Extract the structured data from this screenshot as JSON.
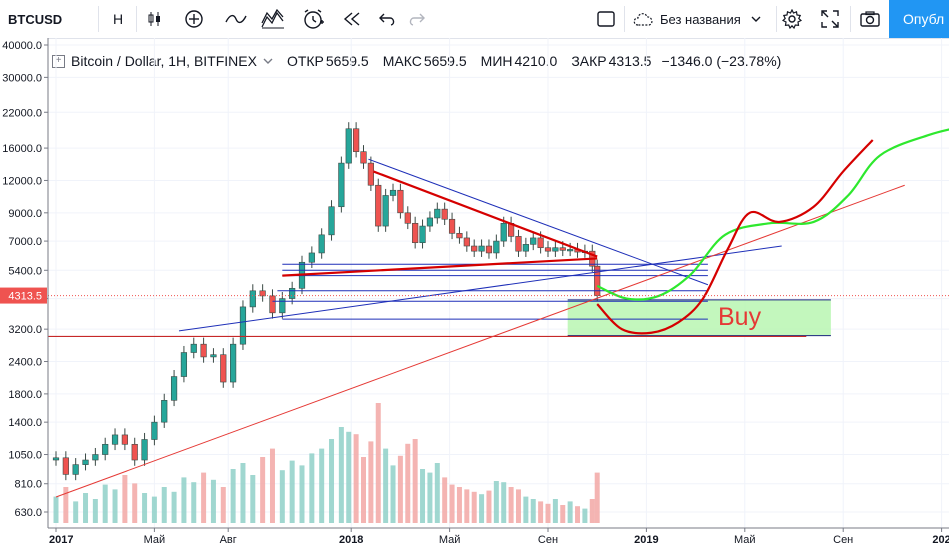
{
  "toolbar": {
    "symbol": "BTCUSD",
    "interval": "H",
    "layout_name": "Без названия",
    "publish_label": "Опубл"
  },
  "legend": {
    "title": "Bitcoin / Dollar, 1H, BITFINEX",
    "open_label": "ОТКР",
    "open": "5659.5",
    "high_label": "МАКС",
    "high": "5659.5",
    "low_label": "МИН",
    "low": "4210.0",
    "close_label": "ЗАКР",
    "close": "4313.5",
    "change": "−1346.0 (−23.78%)"
  },
  "annotation": {
    "buy_label": "Buy"
  },
  "colors": {
    "up": "#26a69a",
    "down": "#ef5350",
    "accent": "#2196f3"
  },
  "chart_data": {
    "type": "candlestick",
    "symbol": "BTCUSD",
    "exchange": "BITFINEX",
    "y_scale": "log",
    "ylim": [
      560,
      42000
    ],
    "y_ticks": [
      "40000.0",
      "30000.0",
      "22000.0",
      "16000.0",
      "12000.0",
      "9000.0",
      "7000.0",
      "5400.0",
      "4200.0",
      "3200.0",
      "2400.0",
      "1800.0",
      "1400.0",
      "1050.0",
      "810.0",
      "630.0"
    ],
    "y_tick_values": [
      40000,
      30000,
      22000,
      16000,
      12000,
      9000,
      7000,
      5400,
      4200,
      3200,
      2400,
      1800,
      1400,
      1050,
      810,
      630
    ],
    "x_ticks": [
      "2017",
      "Май",
      "Авг",
      "2018",
      "Май",
      "Сен",
      "2019",
      "Май",
      "Сен",
      "202"
    ],
    "x_tick_months": [
      0,
      4,
      7,
      12,
      16,
      20,
      24,
      28,
      32,
      36
    ],
    "last_price": "4313.5",
    "last_price_value": 4313.5,
    "candles": [
      {
        "m": 0.0,
        "o": 1000,
        "c": 1020
      },
      {
        "m": 0.4,
        "o": 1020,
        "c": 880
      },
      {
        "m": 0.8,
        "o": 880,
        "c": 960
      },
      {
        "m": 1.2,
        "o": 960,
        "c": 1000
      },
      {
        "m": 1.6,
        "o": 1000,
        "c": 1050
      },
      {
        "m": 2.0,
        "o": 1050,
        "c": 1150
      },
      {
        "m": 2.4,
        "o": 1150,
        "c": 1250
      },
      {
        "m": 2.8,
        "o": 1250,
        "c": 1150
      },
      {
        "m": 3.2,
        "o": 1150,
        "c": 1000
      },
      {
        "m": 3.6,
        "o": 1000,
        "c": 1200
      },
      {
        "m": 4.0,
        "o": 1200,
        "c": 1400
      },
      {
        "m": 4.4,
        "o": 1400,
        "c": 1700
      },
      {
        "m": 4.8,
        "o": 1700,
        "c": 2100
      },
      {
        "m": 5.2,
        "o": 2100,
        "c": 2600
      },
      {
        "m": 5.6,
        "o": 2600,
        "c": 2800
      },
      {
        "m": 6.0,
        "o": 2800,
        "c": 2500
      },
      {
        "m": 6.4,
        "o": 2500,
        "c": 2550
      },
      {
        "m": 6.8,
        "o": 2550,
        "c": 2000
      },
      {
        "m": 7.2,
        "o": 2000,
        "c": 2800
      },
      {
        "m": 7.6,
        "o": 2800,
        "c": 3900
      },
      {
        "m": 8.0,
        "o": 3900,
        "c": 4500
      },
      {
        "m": 8.4,
        "o": 4500,
        "c": 4300
      },
      {
        "m": 8.8,
        "o": 4300,
        "c": 3700
      },
      {
        "m": 9.2,
        "o": 3700,
        "c": 4200
      },
      {
        "m": 9.6,
        "o": 4200,
        "c": 4600
      },
      {
        "m": 10.0,
        "o": 4600,
        "c": 5800
      },
      {
        "m": 10.4,
        "o": 5800,
        "c": 6300
      },
      {
        "m": 10.8,
        "o": 6300,
        "c": 7400
      },
      {
        "m": 11.2,
        "o": 7400,
        "c": 9500
      },
      {
        "m": 11.6,
        "o": 9500,
        "c": 14000
      },
      {
        "m": 11.9,
        "o": 14000,
        "c": 19000
      },
      {
        "m": 12.2,
        "o": 19000,
        "c": 15500
      },
      {
        "m": 12.5,
        "o": 15500,
        "c": 14000
      },
      {
        "m": 12.8,
        "o": 14000,
        "c": 11500
      },
      {
        "m": 13.1,
        "o": 11500,
        "c": 8000
      },
      {
        "m": 13.4,
        "o": 8000,
        "c": 10500
      },
      {
        "m": 13.7,
        "o": 10500,
        "c": 11000
      },
      {
        "m": 14.0,
        "o": 11000,
        "c": 9000
      },
      {
        "m": 14.3,
        "o": 9000,
        "c": 8200
      },
      {
        "m": 14.6,
        "o": 8200,
        "c": 6900
      },
      {
        "m": 14.9,
        "o": 6900,
        "c": 8000
      },
      {
        "m": 15.2,
        "o": 8000,
        "c": 8600
      },
      {
        "m": 15.5,
        "o": 8600,
        "c": 9300
      },
      {
        "m": 15.8,
        "o": 9300,
        "c": 8500
      },
      {
        "m": 16.1,
        "o": 8500,
        "c": 7500
      },
      {
        "m": 16.4,
        "o": 7500,
        "c": 7200
      },
      {
        "m": 16.7,
        "o": 7200,
        "c": 6700
      },
      {
        "m": 17.0,
        "o": 6700,
        "c": 6400
      },
      {
        "m": 17.3,
        "o": 6400,
        "c": 6700
      },
      {
        "m": 17.6,
        "o": 6700,
        "c": 6300
      },
      {
        "m": 17.9,
        "o": 6300,
        "c": 7000
      },
      {
        "m": 18.2,
        "o": 7000,
        "c": 8200
      },
      {
        "m": 18.5,
        "o": 8200,
        "c": 7300
      },
      {
        "m": 18.8,
        "o": 7300,
        "c": 6400
      },
      {
        "m": 19.1,
        "o": 6400,
        "c": 6800
      },
      {
        "m": 19.4,
        "o": 6800,
        "c": 7200
      },
      {
        "m": 19.7,
        "o": 7200,
        "c": 6600
      },
      {
        "m": 20.0,
        "o": 6600,
        "c": 6400
      },
      {
        "m": 20.3,
        "o": 6400,
        "c": 6600
      },
      {
        "m": 20.6,
        "o": 6600,
        "c": 6450
      },
      {
        "m": 20.9,
        "o": 6450,
        "c": 6500
      },
      {
        "m": 21.2,
        "o": 6500,
        "c": 6350
      },
      {
        "m": 21.5,
        "o": 6350,
        "c": 6400
      },
      {
        "m": 21.8,
        "o": 6400,
        "c": 5600
      },
      {
        "m": 22.0,
        "o": 5600,
        "c": 4313.5
      }
    ],
    "volume": [
      {
        "m": 0.0,
        "v": 0.22
      },
      {
        "m": 0.4,
        "v": 0.3
      },
      {
        "m": 0.8,
        "v": 0.18
      },
      {
        "m": 1.2,
        "v": 0.25
      },
      {
        "m": 1.6,
        "v": 0.2
      },
      {
        "m": 2.0,
        "v": 0.32
      },
      {
        "m": 2.4,
        "v": 0.28
      },
      {
        "m": 2.8,
        "v": 0.4
      },
      {
        "m": 3.2,
        "v": 0.33
      },
      {
        "m": 3.6,
        "v": 0.25
      },
      {
        "m": 4.0,
        "v": 0.22
      },
      {
        "m": 4.4,
        "v": 0.3
      },
      {
        "m": 4.8,
        "v": 0.26
      },
      {
        "m": 5.2,
        "v": 0.38
      },
      {
        "m": 5.6,
        "v": 0.34
      },
      {
        "m": 6.0,
        "v": 0.42
      },
      {
        "m": 6.4,
        "v": 0.36
      },
      {
        "m": 6.8,
        "v": 0.3
      },
      {
        "m": 7.2,
        "v": 0.45
      },
      {
        "m": 7.6,
        "v": 0.5
      },
      {
        "m": 8.0,
        "v": 0.4
      },
      {
        "m": 8.4,
        "v": 0.55
      },
      {
        "m": 8.8,
        "v": 0.62
      },
      {
        "m": 9.2,
        "v": 0.44
      },
      {
        "m": 9.6,
        "v": 0.52
      },
      {
        "m": 10.0,
        "v": 0.48
      },
      {
        "m": 10.4,
        "v": 0.58
      },
      {
        "m": 10.8,
        "v": 0.62
      },
      {
        "m": 11.2,
        "v": 0.7
      },
      {
        "m": 11.6,
        "v": 0.8
      },
      {
        "m": 11.9,
        "v": 0.76
      },
      {
        "m": 12.2,
        "v": 0.74
      },
      {
        "m": 12.5,
        "v": 0.55
      },
      {
        "m": 12.8,
        "v": 0.68
      },
      {
        "m": 13.1,
        "v": 1.0
      },
      {
        "m": 13.4,
        "v": 0.62
      },
      {
        "m": 13.7,
        "v": 0.48
      },
      {
        "m": 14.0,
        "v": 0.56
      },
      {
        "m": 14.3,
        "v": 0.66
      },
      {
        "m": 14.6,
        "v": 0.7
      },
      {
        "m": 14.9,
        "v": 0.45
      },
      {
        "m": 15.2,
        "v": 0.42
      },
      {
        "m": 15.5,
        "v": 0.5
      },
      {
        "m": 15.8,
        "v": 0.38
      },
      {
        "m": 16.1,
        "v": 0.32
      },
      {
        "m": 16.4,
        "v": 0.3
      },
      {
        "m": 16.7,
        "v": 0.28
      },
      {
        "m": 17.0,
        "v": 0.26
      },
      {
        "m": 17.3,
        "v": 0.24
      },
      {
        "m": 17.6,
        "v": 0.27
      },
      {
        "m": 17.9,
        "v": 0.35
      },
      {
        "m": 18.2,
        "v": 0.34
      },
      {
        "m": 18.5,
        "v": 0.3
      },
      {
        "m": 18.8,
        "v": 0.28
      },
      {
        "m": 19.1,
        "v": 0.22
      },
      {
        "m": 19.4,
        "v": 0.2
      },
      {
        "m": 19.7,
        "v": 0.18
      },
      {
        "m": 20.0,
        "v": 0.16
      },
      {
        "m": 20.3,
        "v": 0.2
      },
      {
        "m": 20.6,
        "v": 0.15
      },
      {
        "m": 20.9,
        "v": 0.18
      },
      {
        "m": 21.2,
        "v": 0.14
      },
      {
        "m": 21.5,
        "v": 0.12
      },
      {
        "m": 21.8,
        "v": 0.2
      },
      {
        "m": 22.0,
        "v": 0.42
      }
    ],
    "drawings": {
      "horizontal_blue": [
        {
          "m1": 9.2,
          "m2": 26.5,
          "p": 5700
        },
        {
          "m1": 9.2,
          "m2": 26.5,
          "p": 5400
        },
        {
          "m1": 9.2,
          "m2": 26.5,
          "p": 5150
        },
        {
          "m1": 9.0,
          "m2": 26.5,
          "p": 4500
        },
        {
          "m1": 8.8,
          "m2": 26.5,
          "p": 4100
        },
        {
          "m1": 9.2,
          "m2": 26.5,
          "p": 3500
        }
      ],
      "horizontal_red": {
        "m1": 0.0,
        "m2": 30.5,
        "p": 3000
      },
      "buy_zone": {
        "m1": 20.8,
        "m2": 31.5,
        "p_top": 4150,
        "p_bottom": 3020
      },
      "trend_lines_blue": [
        {
          "m1": 12.7,
          "p1": 14500,
          "m2": 26.5,
          "p2": 4750
        },
        {
          "m1": 5.0,
          "p1": 3150,
          "m2": 29.5,
          "p2": 6700
        }
      ],
      "trend_lines_red": [
        {
          "m1": 0.0,
          "p1": 720,
          "m2": 34.5,
          "p2": 11500
        },
        {
          "m1": 9.2,
          "p1": 5150,
          "m2": 22.0,
          "p2": 6000
        },
        {
          "m1": 12.9,
          "p1": 13000,
          "m2": 22.0,
          "p2": 6100
        }
      ],
      "forecast_green": [
        [
          22.0,
          4700
        ],
        [
          23.2,
          4200
        ],
        [
          24.5,
          4300
        ],
        [
          25.8,
          5200
        ],
        [
          27.2,
          7400
        ],
        [
          29.0,
          8200
        ],
        [
          30.8,
          8300
        ],
        [
          32.2,
          10500
        ],
        [
          33.5,
          15000
        ],
        [
          35.5,
          18000
        ],
        [
          37.0,
          19500
        ]
      ],
      "forecast_red": [
        [
          22.0,
          4000
        ],
        [
          23.0,
          3200
        ],
        [
          24.2,
          3100
        ],
        [
          25.3,
          3400
        ],
        [
          26.3,
          4200
        ],
        [
          27.3,
          6500
        ],
        [
          28.2,
          9000
        ],
        [
          29.4,
          8300
        ],
        [
          30.8,
          9500
        ],
        [
          32.0,
          13000
        ],
        [
          33.2,
          17200
        ]
      ]
    }
  }
}
